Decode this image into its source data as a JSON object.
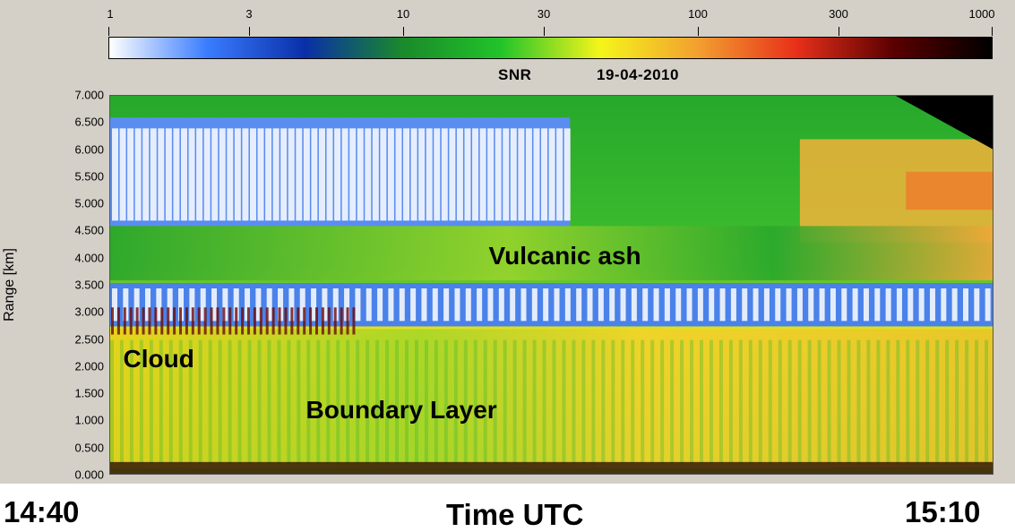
{
  "chart_data": {
    "type": "heatmap",
    "title": "SNR",
    "date": "19-04-2010",
    "colorbar": {
      "scale": "log",
      "range": [
        1,
        1000
      ],
      "ticks": [
        "1",
        "3",
        "10",
        "30",
        "100",
        "300",
        "1000"
      ],
      "tick_values": [
        1,
        3,
        10,
        30,
        100,
        300,
        1000
      ],
      "colors": [
        "#ffffff",
        "#3a7cff",
        "#0a2fa8",
        "#1a8a2a",
        "#22c42a",
        "#f5f51a",
        "#f2a030",
        "#e8301a",
        "#5a0000",
        "#000000"
      ]
    },
    "ylabel": "Range [km]",
    "ylim": [
      0,
      7
    ],
    "yticks": [
      "0.000",
      "0.500",
      "1.000",
      "1.500",
      "2.000",
      "2.500",
      "3.000",
      "3.500",
      "4.000",
      "4.500",
      "5.000",
      "5.500",
      "6.000",
      "6.500",
      "7.000"
    ],
    "ytick_values": [
      0,
      0.5,
      1,
      1.5,
      2,
      2.5,
      3,
      3.5,
      4,
      4.5,
      5,
      5.5,
      6,
      6.5,
      7
    ],
    "xlabel": "Time UTC",
    "xstart": "14:40",
    "xend": "15:10",
    "annotations": [
      {
        "text": "Vulcanic ash",
        "x_min": 15,
        "range_km": 4.0
      },
      {
        "text": "Cloud",
        "x_min": 2.6,
        "range_km": 2.1
      },
      {
        "text": "Boundary Layer",
        "x_min": 8.8,
        "range_km": 1.15
      }
    ],
    "layers": [
      {
        "name": "Cloud",
        "range_km": [
          2.5,
          3.2
        ],
        "x_min": [
          0,
          8
        ]
      },
      {
        "name": "Vulcanic ash",
        "range_km": [
          3.6,
          4.6
        ],
        "x_min": [
          0,
          30
        ]
      },
      {
        "name": "Boundary Layer",
        "range_km": [
          0,
          2.7
        ],
        "x_min": [
          0,
          30
        ]
      }
    ]
  }
}
